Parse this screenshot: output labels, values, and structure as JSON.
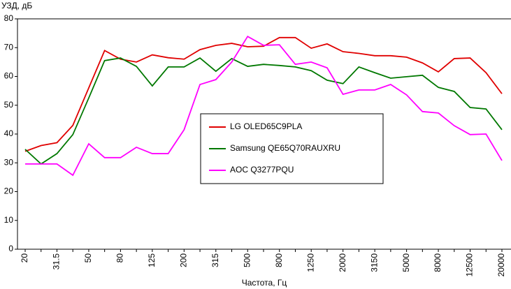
{
  "chart_data": {
    "type": "line",
    "y_label": "УЗД, дБ",
    "x_label": "Частота, Гц",
    "categories": [
      "20",
      null,
      "31.5",
      null,
      "50",
      null,
      "80",
      null,
      "125",
      null,
      "200",
      null,
      "315",
      null,
      "500",
      null,
      "800",
      null,
      "1250",
      null,
      "2000",
      null,
      "3150",
      null,
      "5000",
      null,
      "8000",
      null,
      "12500",
      null,
      "20000"
    ],
    "ylim": [
      0,
      80
    ],
    "yticks": [
      0,
      10,
      20,
      30,
      40,
      50,
      60,
      70,
      80
    ],
    "grid": false,
    "legend": "center",
    "series": [
      {
        "name": "LG OLED65C9PLA",
        "color": "#e00000",
        "values": [
          34,
          36,
          37,
          43,
          56,
          69,
          66,
          65,
          67.5,
          66.5,
          66,
          69.3,
          70.8,
          71.5,
          70.3,
          70.5,
          73.5,
          73.5,
          69.8,
          71.3,
          68.6,
          68,
          67.2,
          67.2,
          66.7,
          64.7,
          61.6,
          66.2,
          66.4,
          61.3,
          54
        ]
      },
      {
        "name": "Samsung QE65Q70RAUXRU",
        "color": "#007800",
        "values": [
          34.7,
          29.6,
          33.2,
          39.8,
          52.5,
          65.5,
          66.4,
          63.5,
          56.7,
          63.3,
          63.3,
          66.4,
          61.8,
          66.2,
          63.5,
          64.2,
          63.8,
          63.3,
          62,
          58.7,
          57.5,
          63.3,
          61.3,
          59.4,
          59.9,
          60.4,
          56.2,
          54.8,
          49.2,
          48.7,
          41.5
        ]
      },
      {
        "name": "AOC Q3277PQU",
        "color": "#ff00ff",
        "values": [
          29.6,
          29.6,
          29.6,
          25.7,
          36.6,
          31.8,
          31.8,
          35.4,
          33.2,
          33.2,
          41.5,
          57.2,
          58.9,
          65,
          73.9,
          70.8,
          71,
          64.2,
          65,
          63,
          53.8,
          55.3,
          55.3,
          57.2,
          53.6,
          47.8,
          47.3,
          42.9,
          39.8,
          40,
          30.8
        ]
      }
    ]
  }
}
